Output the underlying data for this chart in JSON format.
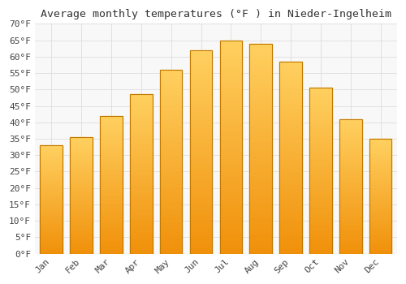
{
  "title": "Average monthly temperatures (°F ) in Nieder-Ingelheim",
  "months": [
    "Jan",
    "Feb",
    "Mar",
    "Apr",
    "May",
    "Jun",
    "Jul",
    "Aug",
    "Sep",
    "Oct",
    "Nov",
    "Dec"
  ],
  "values": [
    33,
    35.5,
    42,
    48.5,
    56,
    62,
    65,
    64,
    58.5,
    50.5,
    41,
    35
  ],
  "bar_color_light": "#FFD060",
  "bar_color_dark": "#F0900A",
  "bar_edge_color": "#C07800",
  "background_color": "#FFFFFF",
  "plot_bg_color": "#F8F8F8",
  "grid_color": "#DDDDDD",
  "text_color": "#444444",
  "title_color": "#333333",
  "ylim": [
    0,
    70
  ],
  "ytick_step": 5,
  "title_fontsize": 9.5,
  "tick_fontsize": 8
}
